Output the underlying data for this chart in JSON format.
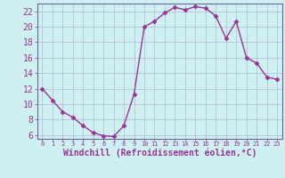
{
  "x": [
    0,
    1,
    2,
    3,
    4,
    5,
    6,
    7,
    8,
    9,
    10,
    11,
    12,
    13,
    14,
    15,
    16,
    17,
    18,
    19,
    20,
    21,
    22,
    23
  ],
  "y": [
    12,
    10.5,
    9,
    8.3,
    7.2,
    6.3,
    5.9,
    5.8,
    7.2,
    11.3,
    20.0,
    20.7,
    21.8,
    22.5,
    22.2,
    22.6,
    22.4,
    21.4,
    18.5,
    20.7,
    16.0,
    15.3,
    13.5,
    13.2
  ],
  "line_color": "#993399",
  "marker": "D",
  "markersize": 2.5,
  "linewidth": 1.0,
  "xlabel": "Windchill (Refroidissement éolien,°C)",
  "xlabel_fontsize": 7,
  "ylim": [
    5.5,
    23.0
  ],
  "xlim": [
    -0.5,
    23.5
  ],
  "yticks": [
    6,
    8,
    10,
    12,
    14,
    16,
    18,
    20,
    22
  ],
  "xticks": [
    0,
    1,
    2,
    3,
    4,
    5,
    6,
    7,
    8,
    9,
    10,
    11,
    12,
    13,
    14,
    15,
    16,
    17,
    18,
    19,
    20,
    21,
    22,
    23
  ],
  "bg_color": "#cff0f0",
  "grid_color": "#aaaacc",
  "ytick_fontsize": 7,
  "xtick_fontsize": 5,
  "axis_color": "#666699",
  "spine_color": "#666699"
}
